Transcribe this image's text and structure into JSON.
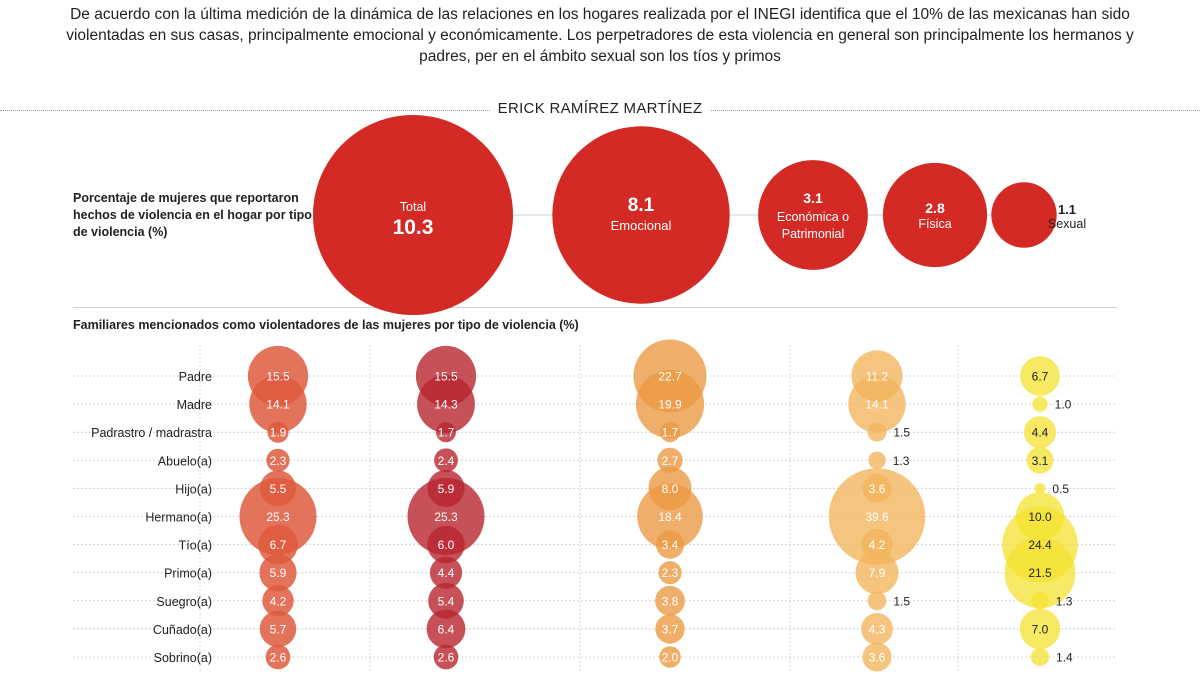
{
  "intro_text": "De acuerdo con la última medición de la dinámica de las relaciones en los hogares realizada por el INEGI identifica que el 10% de las mexicanas han sido violentadas en sus casas, principalmente emocional y económicamente. Los perpetradores de esta violencia en general son principalmente los hermanos y padres, per en el ámbito sexual son los tíos y primos",
  "author": "ERICK RAMÍREZ MARTÍNEZ",
  "colors": {
    "top": "#d42a26",
    "emocional_total": "#de5a3e",
    "emocional": "#b8262f",
    "economica": "#eb9a43",
    "fisica": "#f2b55e",
    "sexual": "#f4e22f"
  },
  "chart_data": [
    {
      "type": "bubble",
      "title": "Porcentaje de mujeres que reportaron hechos de violencia en el hogar por tipo de violencia (%)",
      "categories": [
        "Total",
        "Emocional",
        "Económica o Patrimonial",
        "Física",
        "Sexual"
      ],
      "values": [
        10.3,
        8.1,
        3.1,
        2.8,
        1.1
      ]
    },
    {
      "type": "bubble",
      "title": "Familiares mencionados como violentadores de las mujeres por tipo de violencia (%)",
      "categories": [
        "Padre",
        "Madre",
        "Padrastro / madrastra",
        "Abuelo(a)",
        "Hijo(a)",
        "Hermano(a)",
        "Tío(a)",
        "Primo(a)",
        "Suegro(a)",
        "Cuñado(a)",
        "Sobrino(a)"
      ],
      "series": [
        {
          "values": [
            15.5,
            14.1,
            1.9,
            2.3,
            5.5,
            25.3,
            6.7,
            5.9,
            4.2,
            5.7,
            2.6
          ]
        },
        {
          "values": [
            15.5,
            14.3,
            1.7,
            2.4,
            5.9,
            25.3,
            6.0,
            4.4,
            5.4,
            6.4,
            2.6
          ]
        },
        {
          "values": [
            22.7,
            19.9,
            1.7,
            2.7,
            8.0,
            18.4,
            3.4,
            2.3,
            3.8,
            3.7,
            2.0
          ]
        },
        {
          "values": [
            11.2,
            14.1,
            1.5,
            1.3,
            3.6,
            39.6,
            4.2,
            7.9,
            1.5,
            4.3,
            3.6
          ]
        },
        {
          "values": [
            6.7,
            1.0,
            4.4,
            3.1,
            0.5,
            10.0,
            24.4,
            21.5,
            1.3,
            7.0,
            1.4
          ]
        }
      ]
    }
  ]
}
